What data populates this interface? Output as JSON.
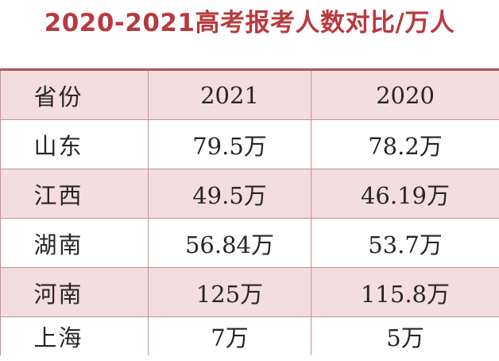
{
  "title": "2020-2021高考报考人数对比/万人",
  "header": [
    "省份",
    "2021",
    "2020"
  ],
  "rows": [
    [
      "山东",
      "79.5万",
      "78.2万"
    ],
    [
      "江西",
      "49.5万",
      "46.19万"
    ],
    [
      "湖南",
      "56.84万",
      "53.7万"
    ],
    [
      "河南",
      "125万",
      "115.8万"
    ],
    [
      "上海",
      "7万",
      "5万"
    ]
  ],
  "colors": {
    "title": "#b83a3e",
    "pink_row": "#f3dde0",
    "border": "#c98e93"
  }
}
